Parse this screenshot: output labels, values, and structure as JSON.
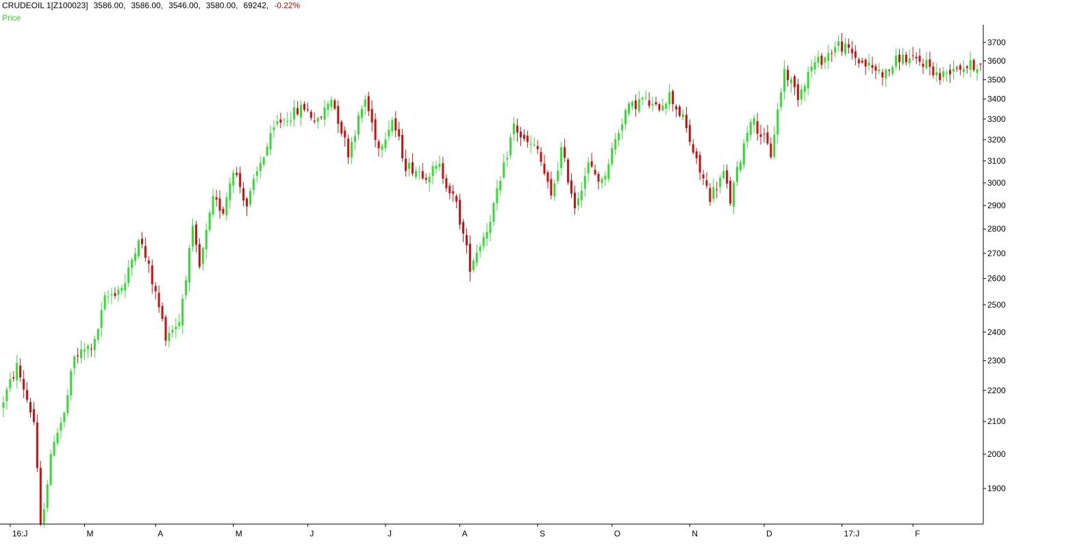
{
  "header": {
    "symbol": "CRUDEOIL 1[Z100023]",
    "open": "3586.00,",
    "high": "3586.00,",
    "low": "3546.00,",
    "close": "3580.00,",
    "volume": "69242,",
    "change": "-0.22%",
    "price_label": "Price"
  },
  "colors": {
    "up": "#33dd33",
    "down": "#cc1111",
    "axis": "#000000",
    "price_label": "#33cc33",
    "change": "#cc0000"
  },
  "chart_data": {
    "type": "candlestick",
    "y_scale": "log",
    "ylim": [
      1800,
      3800
    ],
    "y_ticks": [
      "1900",
      "2000",
      "2100",
      "2200",
      "2300",
      "2400",
      "2500",
      "2600",
      "2700",
      "2800",
      "2900",
      "3000",
      "3100",
      "3200",
      "3300",
      "3400",
      "3500",
      "3600",
      "3700"
    ],
    "x_ticks": [
      "16:J",
      "M",
      "A",
      "M",
      "J",
      "J",
      "A",
      "S",
      "O",
      "N",
      "D",
      "17:J",
      "F"
    ],
    "grid": false,
    "legend": "none",
    "candle_count": 290,
    "waypoints": [
      [
        0,
        2140
      ],
      [
        5,
        2280
      ],
      [
        10,
        2100
      ],
      [
        12,
        1790
      ],
      [
        16,
        2050
      ],
      [
        19,
        2120
      ],
      [
        22,
        2310
      ],
      [
        28,
        2360
      ],
      [
        31,
        2520
      ],
      [
        37,
        2580
      ],
      [
        41,
        2770
      ],
      [
        44,
        2640
      ],
      [
        49,
        2390
      ],
      [
        53,
        2440
      ],
      [
        57,
        2790
      ],
      [
        59,
        2640
      ],
      [
        63,
        2920
      ],
      [
        66,
        2880
      ],
      [
        69,
        3070
      ],
      [
        73,
        2900
      ],
      [
        77,
        3090
      ],
      [
        82,
        3280
      ],
      [
        90,
        3360
      ],
      [
        94,
        3280
      ],
      [
        98,
        3410
      ],
      [
        103,
        3140
      ],
      [
        108,
        3400
      ],
      [
        112,
        3160
      ],
      [
        116,
        3300
      ],
      [
        120,
        3080
      ],
      [
        126,
        3040
      ],
      [
        130,
        3070
      ],
      [
        135,
        2900
      ],
      [
        139,
        2650
      ],
      [
        144,
        2800
      ],
      [
        148,
        3000
      ],
      [
        152,
        3270
      ],
      [
        155,
        3190
      ],
      [
        159,
        3150
      ],
      [
        163,
        2930
      ],
      [
        166,
        3150
      ],
      [
        170,
        2900
      ],
      [
        174,
        3080
      ],
      [
        178,
        3000
      ],
      [
        181,
        3150
      ],
      [
        185,
        3340
      ],
      [
        190,
        3400
      ],
      [
        194,
        3350
      ],
      [
        198,
        3420
      ],
      [
        202,
        3300
      ],
      [
        206,
        3090
      ],
      [
        210,
        2940
      ],
      [
        214,
        3040
      ],
      [
        216,
        2920
      ],
      [
        222,
        3310
      ],
      [
        226,
        3200
      ],
      [
        228,
        3130
      ],
      [
        232,
        3550
      ],
      [
        236,
        3420
      ],
      [
        240,
        3570
      ],
      [
        244,
        3620
      ],
      [
        248,
        3690
      ],
      [
        252,
        3640
      ],
      [
        254,
        3600
      ],
      [
        258,
        3560
      ],
      [
        262,
        3530
      ],
      [
        266,
        3620
      ],
      [
        270,
        3600
      ],
      [
        274,
        3590
      ],
      [
        278,
        3510
      ],
      [
        282,
        3570
      ],
      [
        286,
        3570
      ],
      [
        289,
        3580
      ]
    ],
    "last_candle": {
      "open": 3586.0,
      "high": 3586.0,
      "low": 3546.0,
      "close": 3580.0,
      "volume": 69242
    }
  }
}
